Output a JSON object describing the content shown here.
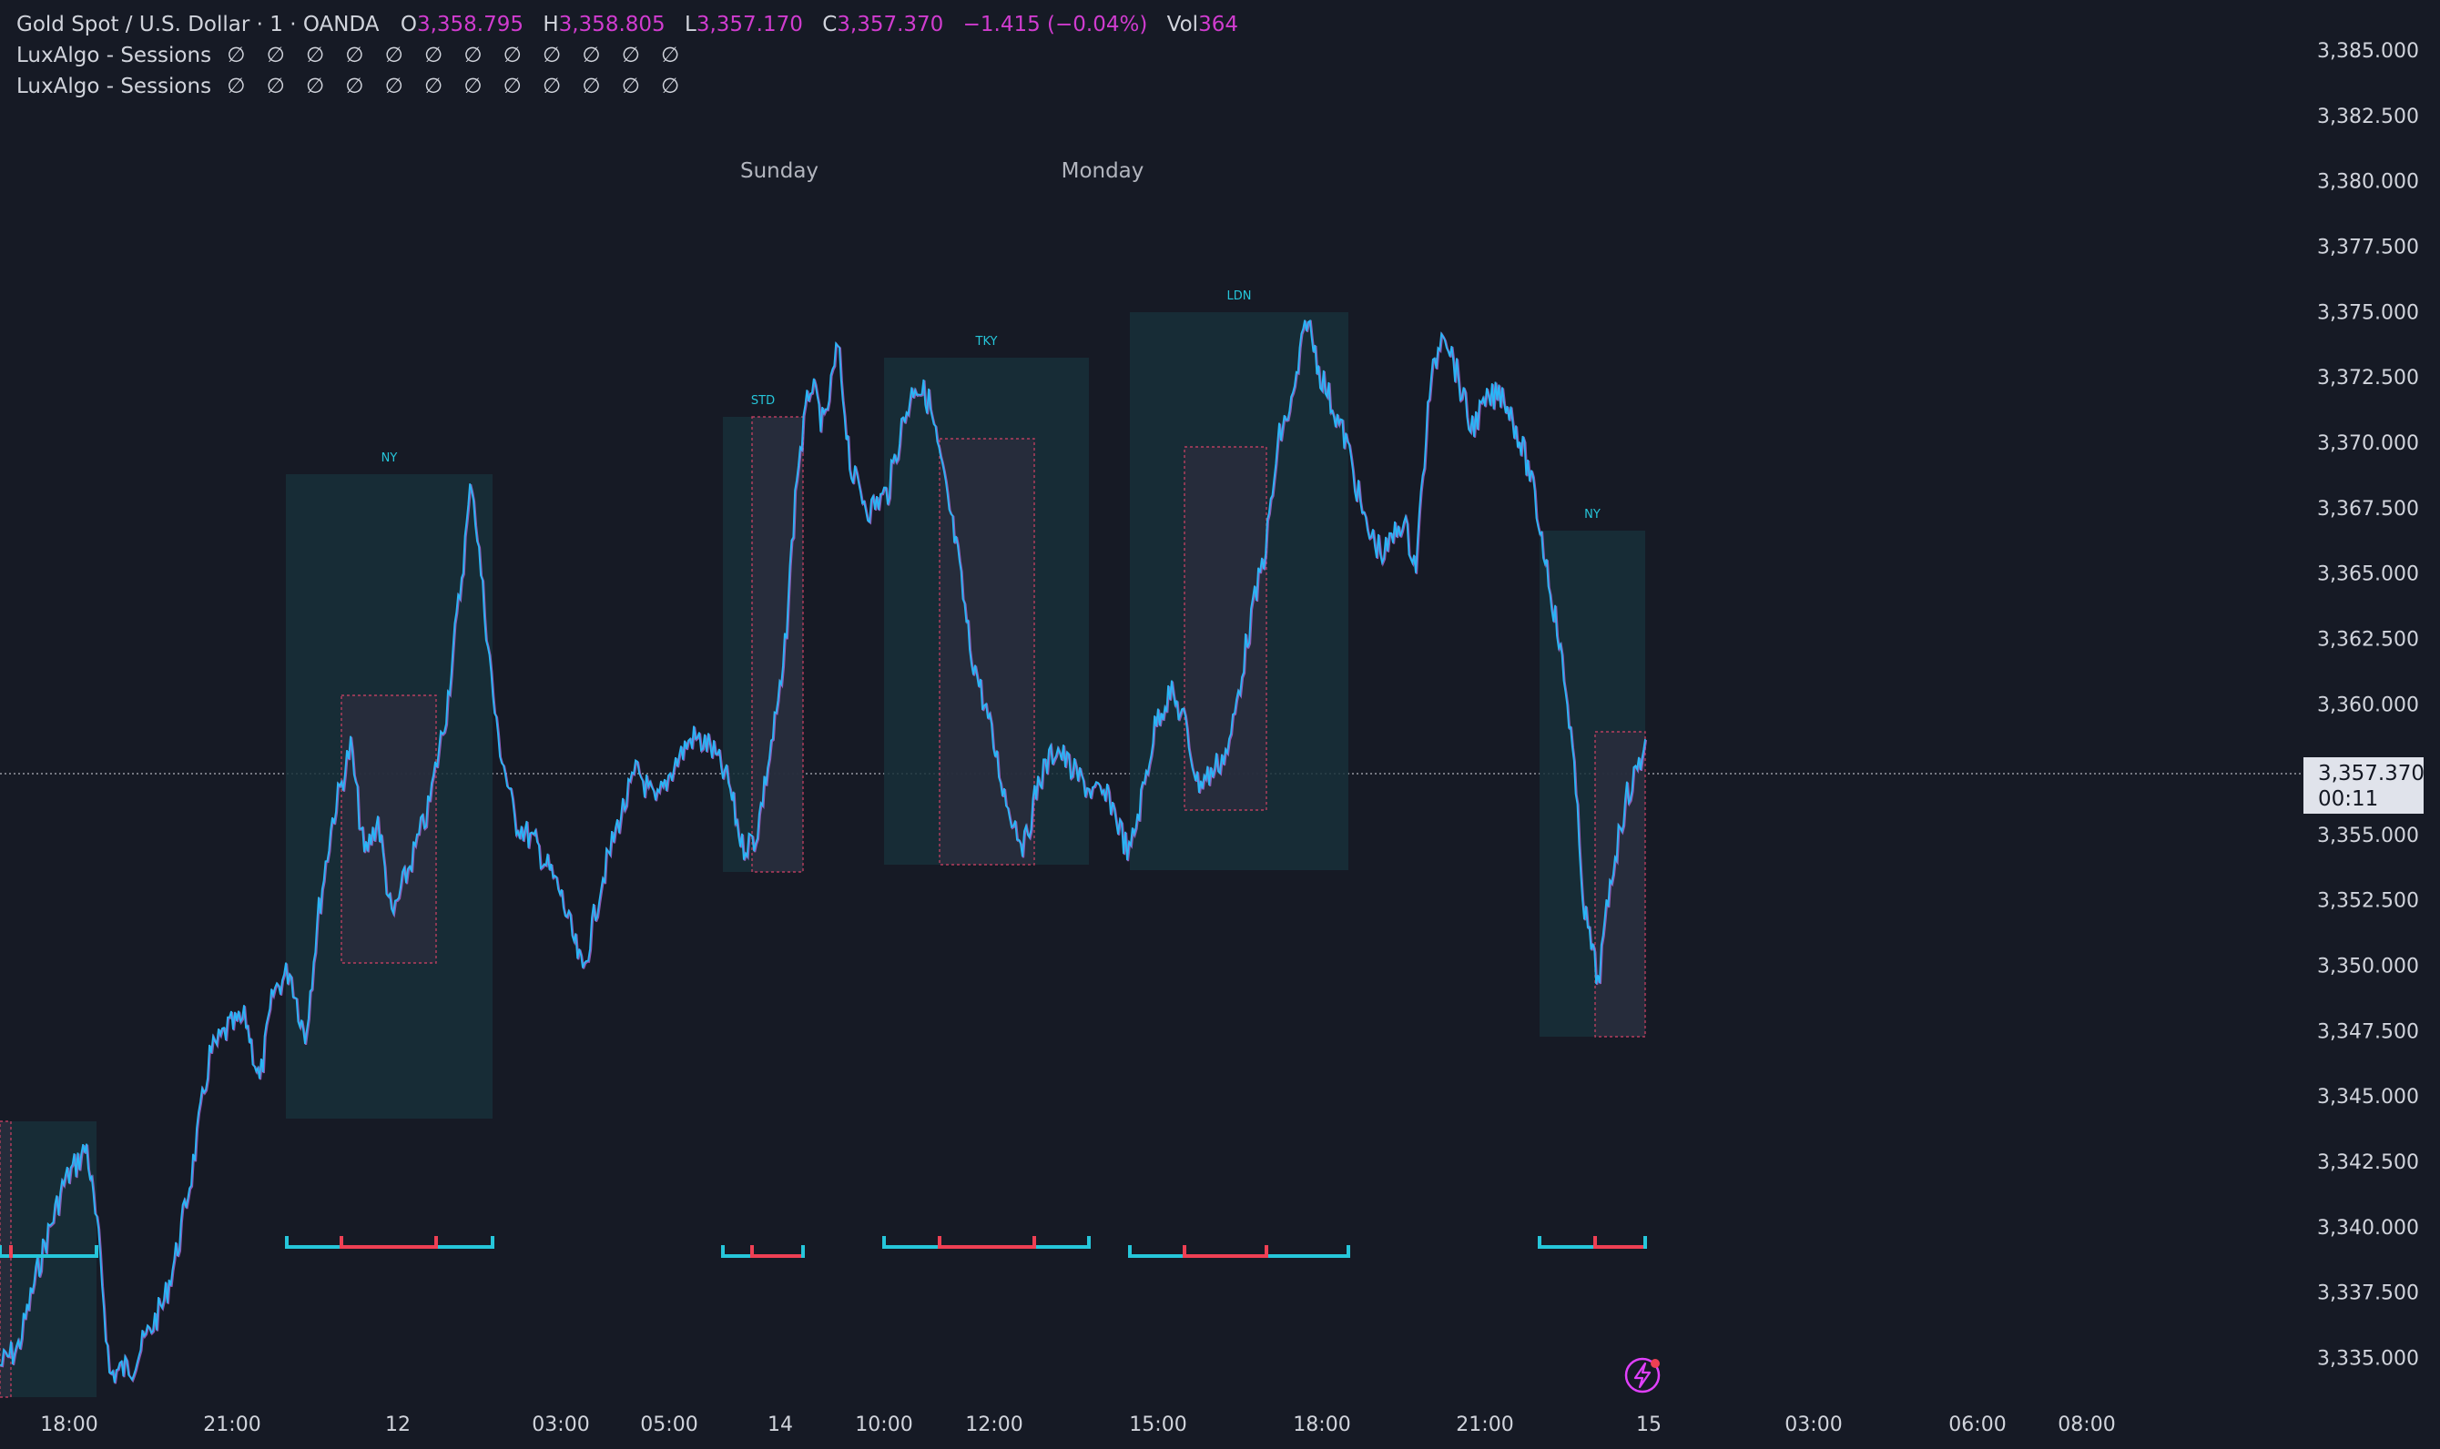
{
  "legend": {
    "symbol": "Gold Spot / U.S. Dollar · 1 · OANDA",
    "o_label": "O",
    "o_value": "3,358.795",
    "h_label": "H",
    "h_value": "3,358.805",
    "l_label": "L",
    "l_value": "3,357.170",
    "c_label": "C",
    "c_value": "3,357.370",
    "change": "−1.415 (−0.04%)",
    "vol_label": "Vol",
    "vol_value": "364",
    "indicators": [
      {
        "name": "LuxAlgo - Sessions",
        "values": "∅ ∅ ∅ ∅ ∅ ∅ ∅ ∅ ∅ ∅ ∅ ∅"
      },
      {
        "name": "LuxAlgo - Sessions",
        "values": "∅ ∅ ∅ ∅ ∅ ∅ ∅ ∅ ∅ ∅ ∅ ∅"
      }
    ]
  },
  "price_axis": [
    "3,385.000",
    "3,382.500",
    "3,380.000",
    "3,377.500",
    "3,375.000",
    "3,372.500",
    "3,370.000",
    "3,367.500",
    "3,365.000",
    "3,362.500",
    "3,360.000",
    "3,355.000",
    "3,352.500",
    "3,350.000",
    "3,347.500",
    "3,345.000",
    "3,342.500",
    "3,340.000",
    "3,337.500",
    "3,335.000"
  ],
  "time_axis": [
    "18:00",
    "21:00",
    "12",
    "03:00",
    "05:00",
    "14",
    "10:00",
    "12:00",
    "15:00",
    "18:00",
    "21:00",
    "15",
    "03:00",
    "06:00",
    "08:00"
  ],
  "day_labels": [
    "Sunday",
    "Monday"
  ],
  "sessions": [
    "NY",
    "STD",
    "TKY",
    "LDN",
    "NY"
  ],
  "current_price": {
    "value": "3,357.370",
    "countdown": "00:11"
  },
  "colors": {
    "background": "#161a25",
    "session_fill": "#17303a",
    "price_line": "#29b6f6",
    "price_line_alt": "#b06ee0",
    "inner_box": "#2a2d3d",
    "inner_box_border": "#e0446a",
    "bracket_cyan": "#26c6da",
    "bracket_red": "#ef4054",
    "session_label": "#26c6da",
    "axis_text": "#d1d4dc",
    "alert": "#e040fb"
  },
  "icons": {
    "alert": "lightning-alert-icon"
  }
}
